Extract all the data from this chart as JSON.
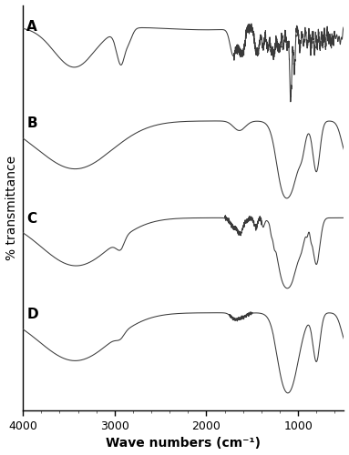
{
  "xlabel": "Wave numbers (cm⁻¹)",
  "ylabel": "% transmittance",
  "labels": [
    "A",
    "B",
    "C",
    "D"
  ],
  "line_color": "#3a3a3a",
  "background_color": "#ffffff",
  "axis_fontsize": 10,
  "label_fontsize": 11
}
